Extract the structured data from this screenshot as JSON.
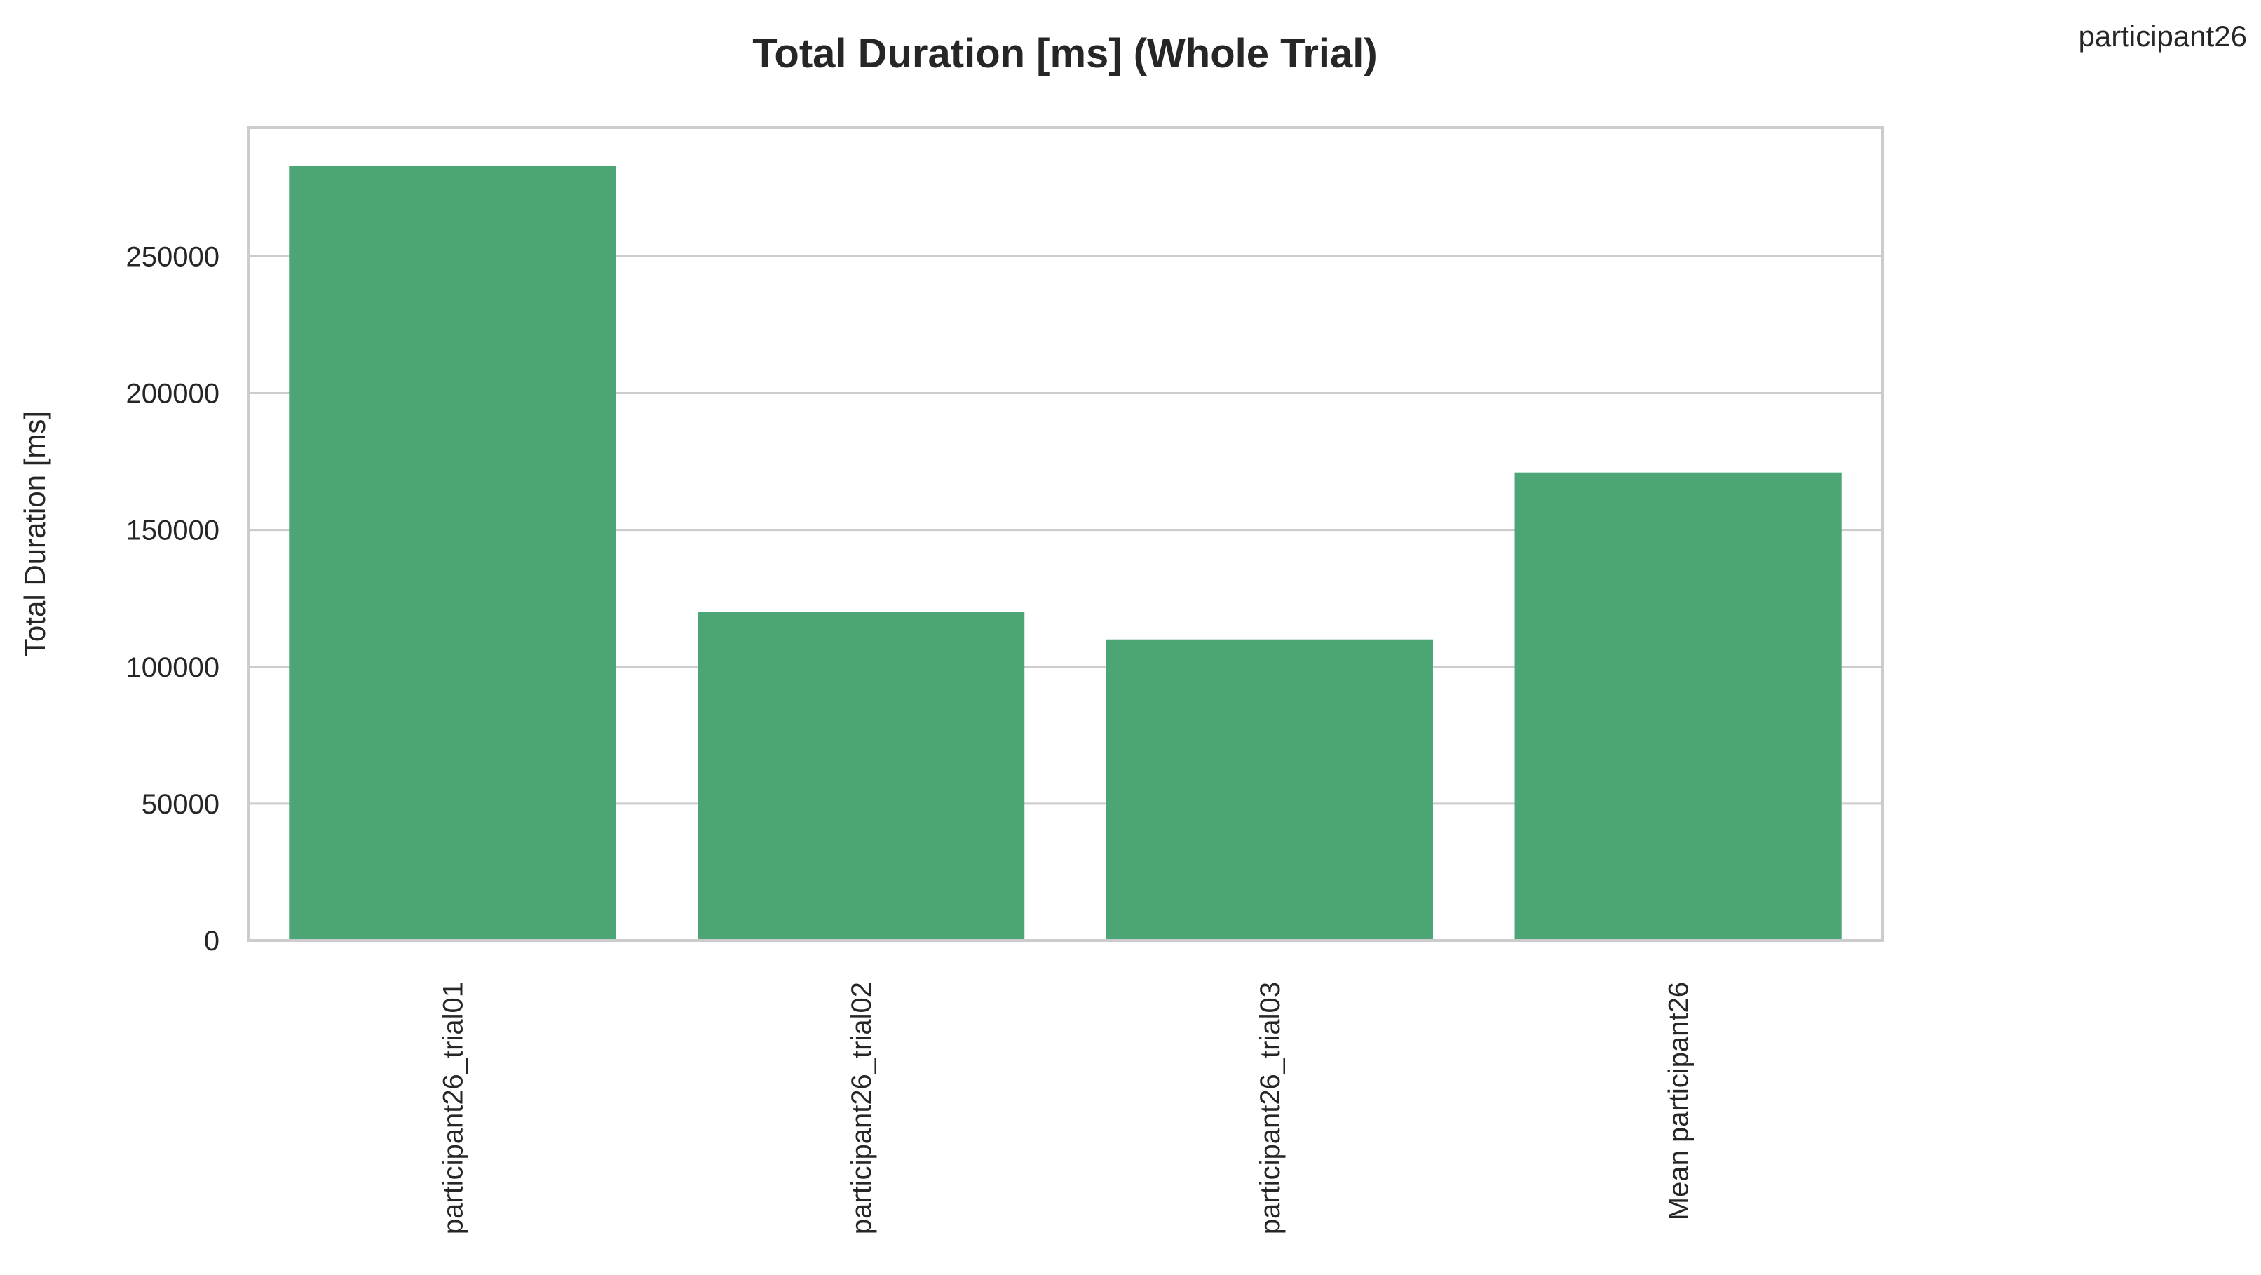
{
  "corner_label": "participant26",
  "chart_data": {
    "type": "bar",
    "title": "Total Duration [ms] (Whole Trial)",
    "xlabel": "",
    "ylabel": "Total Duration [ms]",
    "categories": [
      "participant26_trial01",
      "participant26_trial02",
      "participant26_trial03",
      "Mean participant26"
    ],
    "values": [
      283000,
      120000,
      110000,
      171000
    ],
    "ylim": [
      0,
      297000
    ],
    "yticks": [
      0,
      50000,
      100000,
      150000,
      200000,
      250000
    ],
    "ytick_labels": [
      "0",
      "50000",
      "100000",
      "150000",
      "200000",
      "250000"
    ],
    "grid": true,
    "bar_color": "#4ca574"
  }
}
